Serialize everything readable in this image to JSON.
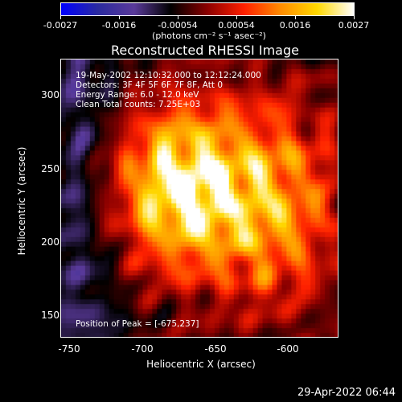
{
  "colorbar": {
    "tick_labels": [
      "-0.0027",
      "-0.0016",
      "-0.00054",
      "0.00054",
      "0.0016",
      "0.0027"
    ],
    "units": "(photons cm⁻² s⁻¹ asec⁻²)"
  },
  "plot": {
    "title": "Reconstructed RHESSI Image",
    "info_lines": [
      "19-May-2002 12:10:32.000 to 12:12:24.000",
      "Detectors: 3F 4F 5F 6F 7F 8F, Att 0",
      "Energy Range: 6.0 - 12.0 keV",
      "Clean     Total counts: 7.25E+03"
    ],
    "peak_label": "Position of Peak = [-675,237]",
    "xlabel": "Heliocentric X (arcsec)",
    "ylabel": "Heliocentric Y (arcsec)",
    "x_ticks": [
      "-750",
      "-700",
      "-650",
      "-600"
    ],
    "y_ticks": [
      "300",
      "250",
      "200",
      "150"
    ]
  },
  "timestamp": "29-Apr-2022 06:44",
  "chart_data": {
    "type": "heatmap",
    "title": "Reconstructed RHESSI Image",
    "xlabel": "Heliocentric X (arcsec)",
    "ylabel": "Heliocentric Y (arcsec)",
    "xlim": [
      -757,
      -565
    ],
    "ylim": [
      133,
      325
    ],
    "colorbar_range": [
      -0.0027,
      0.0027
    ],
    "colorscale": [
      "#0000ff",
      "#2a2aa0",
      "#5a3a9a",
      "#000000",
      "#8b0000",
      "#ff2000",
      "#ff8c00",
      "#ffd800",
      "#ffffff"
    ],
    "peak": [
      -675,
      237
    ]
  }
}
